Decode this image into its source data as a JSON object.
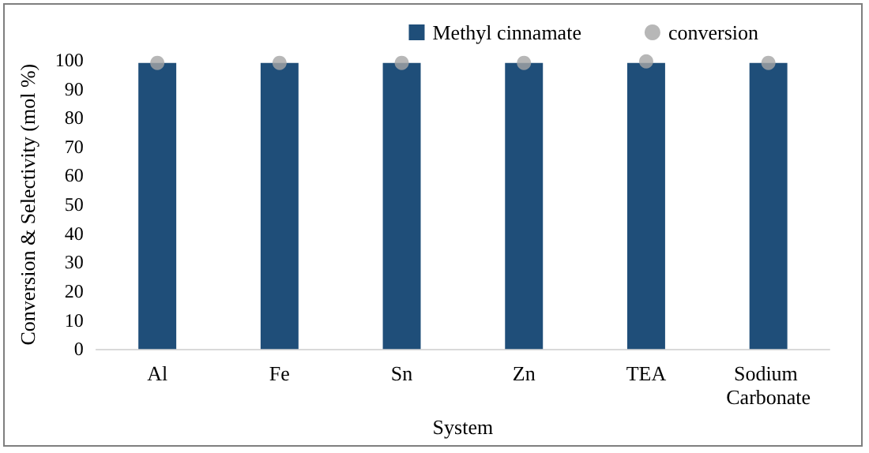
{
  "chart_data": {
    "type": "bar",
    "xlabel": "System",
    "ylabel": "Conversion & Selectivity (mol %)",
    "categories": [
      "Al",
      "Fe",
      "Sn",
      "Zn",
      "TEA",
      "Sodium Carbonate"
    ],
    "series": [
      {
        "name": "Methyl cinnamate",
        "color": "#1f4e79",
        "values": [
          99,
          99,
          99,
          99,
          99,
          99
        ]
      },
      {
        "name": "conversion",
        "type": "scatter",
        "color": "#a5a5a5",
        "x": [
          "Al",
          "Fe",
          "Sn",
          "Zn",
          "TEA",
          "Sodium Carbonate"
        ],
        "values": [
          99,
          99,
          99,
          99,
          99.5,
          99
        ]
      }
    ],
    "ylim": [
      0,
      100
    ],
    "yticks": [
      0,
      10,
      20,
      30,
      40,
      50,
      60,
      70,
      80,
      90,
      100
    ],
    "grid": false,
    "legend": "top right",
    "marker": "circle"
  }
}
